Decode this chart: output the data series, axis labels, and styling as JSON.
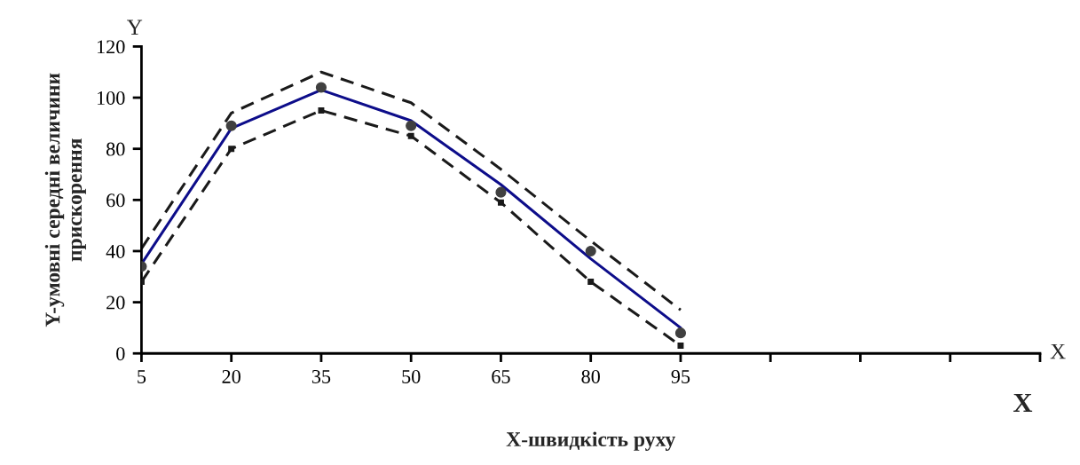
{
  "chart_data": {
    "type": "line",
    "xlabel": "X-швидкість руху",
    "ylabel": "Y-умовні середні величини прискорення",
    "annotations": [
      "Y",
      "X",
      "X"
    ],
    "x": [
      5,
      20,
      35,
      50,
      65,
      80,
      95
    ],
    "series": [
      {
        "type": "scatter",
        "color": "#404040",
        "marker": "circle",
        "values": [
          34,
          89,
          104,
          89,
          63,
          40,
          8
        ]
      },
      {
        "color": "#0d0d8a",
        "marker": "none",
        "line_style": "solid",
        "values": [
          35,
          88,
          103,
          91,
          66,
          37,
          10
        ]
      },
      {
        "color": "#1a1a1a",
        "marker": "none",
        "line_style": "dashed",
        "values": [
          41,
          94,
          110,
          98,
          72,
          44,
          17
        ]
      },
      {
        "color": "#1a1a1a",
        "marker": "square",
        "line_style": "dashed",
        "values": [
          28,
          80,
          95,
          85,
          59,
          28,
          3
        ]
      }
    ],
    "xlim": [
      5,
      155
    ],
    "xticks": [
      5,
      20,
      35,
      50,
      65,
      80,
      95,
      {
        "value": 110,
        "label": null
      },
      {
        "value": 125,
        "label": null
      },
      {
        "value": 140,
        "label": null
      },
      {
        "value": 155,
        "label": null
      }
    ],
    "ylim": [
      0,
      120
    ],
    "yticks": [
      0,
      20,
      40,
      60,
      80,
      100,
      120
    ],
    "grid": false,
    "legend": false
  }
}
